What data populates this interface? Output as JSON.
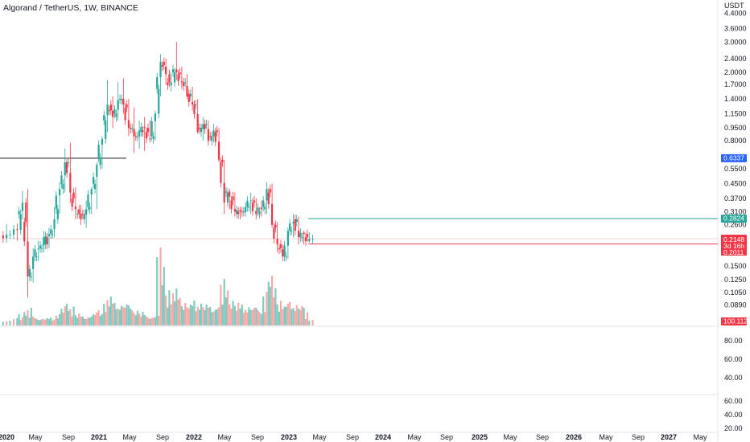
{
  "header": {
    "title": "Algorand / TetherUS, 1W, BINANCE"
  },
  "chart_data": {
    "type": "candlestick",
    "symbol": "Algorand / TetherUS",
    "interval": "1W",
    "exchange": "BINANCE",
    "price_scale": "log",
    "currency_label": "USDT",
    "price_ticks": [
      "4.4000",
      "3.6000",
      "3.0000",
      "2.4000",
      "2.0000",
      "1.7000",
      "1.4000",
      "1.1500",
      "0.9500",
      "0.8000",
      "0.5500",
      "0.4500",
      "0.3700",
      "0.3100",
      "0.2600",
      "0.1500",
      "0.1250",
      "0.1050",
      "0.0890"
    ],
    "x_ticks": [
      "2020",
      "May",
      "Sep",
      "2021",
      "May",
      "Sep",
      "2022",
      "May",
      "Sep",
      "2023",
      "May",
      "Sep",
      "2024",
      "May",
      "Sep",
      "2025",
      "May",
      "Sep",
      "2026",
      "May",
      "Sep",
      "2027",
      "May"
    ],
    "price_series": [
      [
        "2019-12-29",
        0.225,
        0.262,
        0.205,
        0.228
      ],
      [
        "2020-02-09",
        0.228,
        0.265,
        0.21,
        0.243
      ],
      [
        "2020-03-01",
        0.3,
        0.41,
        0.28,
        0.35
      ],
      [
        "2020-03-22",
        0.27,
        0.42,
        0.098,
        0.13
      ],
      [
        "2020-04-12",
        0.13,
        0.19,
        0.12,
        0.17
      ],
      [
        "2020-05-03",
        0.17,
        0.21,
        0.16,
        0.19
      ],
      [
        "2020-05-24",
        0.19,
        0.24,
        0.18,
        0.22
      ],
      [
        "2020-06-14",
        0.2,
        0.25,
        0.19,
        0.23
      ],
      [
        "2020-07-05",
        0.23,
        0.33,
        0.22,
        0.28
      ],
      [
        "2020-07-26",
        0.32,
        0.46,
        0.3,
        0.42
      ],
      [
        "2020-08-16",
        0.45,
        0.72,
        0.4,
        0.6
      ],
      [
        "2020-09-06",
        0.6,
        0.78,
        0.35,
        0.4
      ],
      [
        "2020-09-27",
        0.37,
        0.43,
        0.28,
        0.32
      ],
      [
        "2020-10-18",
        0.3,
        0.34,
        0.26,
        0.28
      ],
      [
        "2020-11-08",
        0.3,
        0.36,
        0.25,
        0.32
      ],
      [
        "2020-11-29",
        0.33,
        0.43,
        0.3,
        0.42
      ],
      [
        "2020-12-20",
        0.45,
        0.6,
        0.32,
        0.58
      ],
      [
        "2021-01-10",
        0.64,
        0.85,
        0.55,
        0.82
      ],
      [
        "2021-01-31",
        1.05,
        1.8,
        0.9,
        1.3
      ],
      [
        "2021-02-21",
        1.2,
        1.45,
        0.95,
        1.1
      ],
      [
        "2021-03-14",
        1.15,
        1.75,
        1.05,
        1.38
      ],
      [
        "2021-04-04",
        1.4,
        1.85,
        1.15,
        1.3
      ],
      [
        "2021-04-25",
        1.25,
        1.4,
        0.85,
        0.95
      ],
      [
        "2021-05-16",
        0.95,
        1.25,
        0.68,
        0.85
      ],
      [
        "2021-06-06",
        0.85,
        1.05,
        0.72,
        0.92
      ],
      [
        "2021-06-27",
        0.9,
        1.1,
        0.7,
        0.95
      ],
      [
        "2021-07-18",
        0.9,
        1.05,
        0.78,
        0.82
      ],
      [
        "2021-08-08",
        0.85,
        1.2,
        0.8,
        1.15
      ],
      [
        "2021-08-29",
        1.6,
        2.55,
        1.45,
        2.3
      ],
      [
        "2021-09-19",
        2.2,
        2.4,
        1.7,
        1.95
      ],
      [
        "2021-10-10",
        1.75,
        2.0,
        1.55,
        1.75
      ],
      [
        "2021-10-31",
        2.0,
        3.0,
        1.8,
        2.0
      ],
      [
        "2021-11-21",
        1.95,
        2.15,
        1.6,
        1.75
      ],
      [
        "2021-12-12",
        1.75,
        1.95,
        1.4,
        1.45
      ],
      [
        "2022-01-02",
        1.5,
        1.65,
        1.2,
        1.3
      ],
      [
        "2022-01-23",
        1.3,
        1.4,
        0.88,
        0.9
      ],
      [
        "2022-02-13",
        0.95,
        1.1,
        0.8,
        1.0
      ],
      [
        "2022-03-06",
        1.0,
        1.05,
        0.75,
        0.8
      ],
      [
        "2022-03-27",
        0.85,
        1.0,
        0.78,
        0.92
      ],
      [
        "2022-04-17",
        0.9,
        0.95,
        0.6,
        0.62
      ],
      [
        "2022-05-08",
        0.6,
        0.62,
        0.3,
        0.35
      ],
      [
        "2022-05-29",
        0.4,
        0.42,
        0.32,
        0.38
      ],
      [
        "2022-06-19",
        0.36,
        0.4,
        0.29,
        0.31
      ],
      [
        "2022-07-10",
        0.3,
        0.33,
        0.28,
        0.31
      ],
      [
        "2022-07-31",
        0.31,
        0.35,
        0.29,
        0.33
      ],
      [
        "2022-08-21",
        0.33,
        0.4,
        0.3,
        0.36
      ],
      [
        "2022-09-11",
        0.35,
        0.37,
        0.28,
        0.3
      ],
      [
        "2022-10-02",
        0.31,
        0.36,
        0.29,
        0.32
      ],
      [
        "2022-10-23",
        0.33,
        0.46,
        0.3,
        0.42
      ],
      [
        "2022-11-13",
        0.4,
        0.45,
        0.25,
        0.26
      ],
      [
        "2022-12-04",
        0.25,
        0.27,
        0.18,
        0.2
      ],
      [
        "2022-12-25",
        0.19,
        0.2,
        0.16,
        0.17
      ],
      [
        "2023-01-15",
        0.17,
        0.25,
        0.165,
        0.24
      ],
      [
        "2023-02-05",
        0.24,
        0.3,
        0.22,
        0.27
      ],
      [
        "2023-02-26",
        0.28,
        0.29,
        0.2,
        0.22
      ],
      [
        "2023-03-19",
        0.22,
        0.24,
        0.2,
        0.23
      ],
      [
        "2023-04-09",
        0.22,
        0.235,
        0.205,
        0.215
      ]
    ],
    "volume_series": [
      [
        "2019-12-29",
        6
      ],
      [
        "2020-02-09",
        9
      ],
      [
        "2020-03-01",
        14
      ],
      [
        "2020-03-22",
        22
      ],
      [
        "2020-04-12",
        11
      ],
      [
        "2020-05-03",
        9
      ],
      [
        "2020-05-24",
        9
      ],
      [
        "2020-06-14",
        8
      ],
      [
        "2020-07-05",
        10
      ],
      [
        "2020-07-26",
        16
      ],
      [
        "2020-08-16",
        24
      ],
      [
        "2020-09-06",
        27
      ],
      [
        "2020-09-27",
        15
      ],
      [
        "2020-10-18",
        11
      ],
      [
        "2020-11-08",
        11
      ],
      [
        "2020-11-29",
        13
      ],
      [
        "2020-12-20",
        16
      ],
      [
        "2021-01-10",
        19
      ],
      [
        "2021-01-31",
        36
      ],
      [
        "2021-02-21",
        27
      ],
      [
        "2021-03-14",
        28
      ],
      [
        "2021-04-04",
        26
      ],
      [
        "2021-04-25",
        25
      ],
      [
        "2021-05-16",
        21
      ],
      [
        "2021-06-06",
        17
      ],
      [
        "2021-06-27",
        13
      ],
      [
        "2021-07-18",
        11
      ],
      [
        "2021-08-08",
        12
      ],
      [
        "2021-08-29",
        97
      ],
      [
        "2021-09-19",
        50
      ],
      [
        "2021-10-10",
        30
      ],
      [
        "2021-10-31",
        46
      ],
      [
        "2021-11-21",
        32
      ],
      [
        "2021-12-12",
        26
      ],
      [
        "2022-01-02",
        24
      ],
      [
        "2022-01-23",
        31
      ],
      [
        "2022-02-13",
        26
      ],
      [
        "2022-03-06",
        22
      ],
      [
        "2022-03-27",
        23
      ],
      [
        "2022-04-17",
        26
      ],
      [
        "2022-05-08",
        58
      ],
      [
        "2022-05-29",
        35
      ],
      [
        "2022-06-19",
        28
      ],
      [
        "2022-07-10",
        21
      ],
      [
        "2022-07-31",
        26
      ],
      [
        "2022-08-21",
        22
      ],
      [
        "2022-09-11",
        22
      ],
      [
        "2022-10-02",
        19
      ],
      [
        "2022-10-23",
        48
      ],
      [
        "2022-11-13",
        62
      ],
      [
        "2022-12-04",
        35
      ],
      [
        "2022-12-25",
        23
      ],
      [
        "2023-01-15",
        27
      ],
      [
        "2023-02-05",
        29
      ],
      [
        "2023-02-26",
        24
      ],
      [
        "2023-03-19",
        22
      ],
      [
        "2023-04-09",
        8
      ]
    ],
    "lines": [
      {
        "price": 0.6337,
        "color": "#131722",
        "label": "0.6337"
      },
      {
        "price": 0.2824,
        "color": "#26a69a",
        "label": "0.2824"
      },
      {
        "price": 0.2011,
        "color": "#f23645",
        "label": "0.2011"
      }
    ],
    "last_price": "0.2148",
    "countdown": "3d 16h",
    "volume_tag": "100.112M",
    "oscillator1": {
      "ticks": [
        "80.00",
        "60.00",
        "40.00"
      ]
    },
    "oscillator2": {
      "ticks": [
        "60.00",
        "40.00",
        "20.00"
      ]
    },
    "colors": {
      "up": "#26a69a",
      "down": "#f23645",
      "volume_up": "#7fcbc2",
      "volume_down": "#f7a9a7",
      "line_blue": "#2962ff",
      "grid": "#f0f3fa"
    }
  }
}
